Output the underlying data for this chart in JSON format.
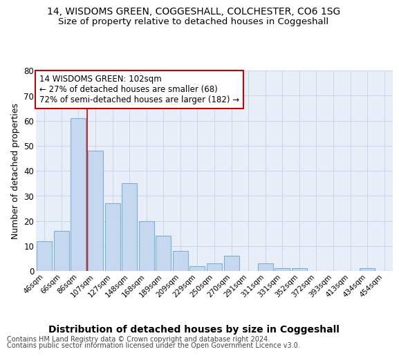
{
  "title": "14, WISDOMS GREEN, COGGESHALL, COLCHESTER, CO6 1SG",
  "subtitle": "Size of property relative to detached houses in Coggeshall",
  "xlabel": "Distribution of detached houses by size in Coggeshall",
  "ylabel": "Number of detached properties",
  "categories": [
    "46sqm",
    "66sqm",
    "86sqm",
    "107sqm",
    "127sqm",
    "148sqm",
    "168sqm",
    "189sqm",
    "209sqm",
    "229sqm",
    "250sqm",
    "270sqm",
    "291sqm",
    "311sqm",
    "331sqm",
    "352sqm",
    "372sqm",
    "393sqm",
    "413sqm",
    "434sqm",
    "454sqm"
  ],
  "values": [
    12,
    16,
    61,
    48,
    27,
    35,
    20,
    14,
    8,
    2,
    3,
    6,
    0,
    3,
    1,
    1,
    0,
    0,
    0,
    1,
    0
  ],
  "bar_color": "#c5d8f0",
  "bar_edge_color": "#7bafd4",
  "vline_color": "#cc0000",
  "vline_x": 3,
  "annotation_line1": "14 WISDOMS GREEN: 102sqm",
  "annotation_line2": "← 27% of detached houses are smaller (68)",
  "annotation_line3": "72% of semi-detached houses are larger (182) →",
  "annotation_box_edge_color": "#cc0000",
  "ylim_max": 80,
  "yticks": [
    0,
    10,
    20,
    30,
    40,
    50,
    60,
    70,
    80
  ],
  "grid_color": "#c8d4e8",
  "plot_bg_color": "#e8eef8",
  "title_fontsize": 10,
  "subtitle_fontsize": 9.5,
  "ylabel_fontsize": 9,
  "xlabel_fontsize": 10,
  "footer_fontsize": 7,
  "footer_line1": "Contains HM Land Registry data © Crown copyright and database right 2024.",
  "footer_line2": "Contains public sector information licensed under the Open Government Licence v3.0."
}
